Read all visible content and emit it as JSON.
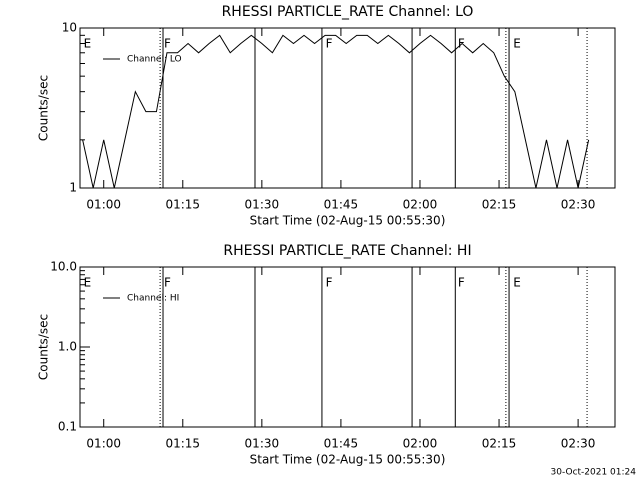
{
  "charts": [
    {
      "type": "line",
      "title": "RHESSI PARTICLE_RATE Channel: LO",
      "xlabel": "Start Time (02-Aug-15 00:55:30)",
      "ylabel": "Counts/sec",
      "log_y": true,
      "ylim": [
        1,
        10
      ],
      "yticks": [
        1,
        10
      ],
      "xlim": [
        55.5,
        157
      ],
      "xticks": [
        {
          "value": 60,
          "label": "01:00"
        },
        {
          "value": 75,
          "label": "01:15"
        },
        {
          "value": 90,
          "label": "01:30"
        },
        {
          "value": 105,
          "label": "01:45"
        },
        {
          "value": 120,
          "label": "02:00"
        },
        {
          "value": 135,
          "label": "02:15"
        },
        {
          "value": 150,
          "label": "02:30"
        }
      ],
      "x": [
        56,
        58,
        60,
        62,
        64,
        66,
        68,
        70,
        72,
        74,
        76,
        78,
        80,
        82,
        84,
        86,
        88,
        90,
        92,
        94,
        96,
        98,
        100,
        102,
        104,
        106,
        108,
        110,
        112,
        114,
        116,
        118,
        120,
        122,
        124,
        126,
        128,
        130,
        132,
        134,
        136,
        138,
        140,
        142,
        144,
        146,
        148,
        150,
        152
      ],
      "series": [
        {
          "name": "Channel: LO",
          "color": "#000000",
          "values": [
            2,
            1,
            2,
            1,
            2,
            4,
            3,
            3,
            7,
            7,
            8,
            7,
            8,
            9,
            7,
            8,
            9,
            8,
            7,
            9,
            8,
            9,
            8,
            9,
            9,
            8,
            9,
            9,
            8,
            9,
            8,
            7,
            8,
            9,
            8,
            7,
            8,
            7,
            8,
            7,
            5,
            4,
            2,
            1,
            2,
            1,
            2,
            1,
            2
          ]
        }
      ],
      "vlines": [
        {
          "x": 70.7,
          "style": "dotted"
        },
        {
          "x": 71.25,
          "style": "solid"
        },
        {
          "x": 88.7,
          "style": "solid"
        },
        {
          "x": 101.4,
          "style": "solid"
        },
        {
          "x": 118.5,
          "style": "solid"
        },
        {
          "x": 126.7,
          "style": "solid"
        },
        {
          "x": 136.3,
          "style": "dotted"
        },
        {
          "x": 136.9,
          "style": "solid"
        },
        {
          "x": 151.7,
          "style": "dotted"
        }
      ],
      "flags": [
        {
          "x": 56,
          "label": "E"
        },
        {
          "x": 71.25,
          "label": "F"
        },
        {
          "x": 101.9,
          "label": "F"
        },
        {
          "x": 127,
          "label": "F"
        },
        {
          "x": 137.5,
          "label": "E"
        }
      ]
    },
    {
      "type": "line",
      "title": "RHESSI PARTICLE_RATE Channel: HI",
      "xlabel": "Start Time (02-Aug-15 00:55:30)",
      "ylabel": "Counts/sec",
      "log_y": true,
      "ylim": [
        0.1,
        10
      ],
      "yticks": [
        {
          "value": 0.1,
          "label": "0.1"
        },
        {
          "value": 1,
          "label": "1.0"
        },
        {
          "value": 10,
          "label": "10.0"
        }
      ],
      "xlim": [
        55.5,
        157
      ],
      "xticks": [
        {
          "value": 60,
          "label": "01:00"
        },
        {
          "value": 75,
          "label": "01:15"
        },
        {
          "value": 90,
          "label": "01:30"
        },
        {
          "value": 105,
          "label": "01:45"
        },
        {
          "value": 120,
          "label": "02:00"
        },
        {
          "value": 135,
          "label": "02:15"
        },
        {
          "value": 150,
          "label": "02:30"
        }
      ],
      "x": [],
      "series": [
        {
          "name": "Channel: HI",
          "color": "#000000",
          "values": []
        }
      ],
      "vlines": [
        {
          "x": 70.7,
          "style": "dotted"
        },
        {
          "x": 71.25,
          "style": "solid"
        },
        {
          "x": 88.7,
          "style": "solid"
        },
        {
          "x": 101.4,
          "style": "solid"
        },
        {
          "x": 118.5,
          "style": "solid"
        },
        {
          "x": 126.7,
          "style": "solid"
        },
        {
          "x": 136.3,
          "style": "dotted"
        },
        {
          "x": 136.9,
          "style": "solid"
        },
        {
          "x": 151.7,
          "style": "dotted"
        }
      ],
      "flags": [
        {
          "x": 56,
          "label": "E"
        },
        {
          "x": 71.25,
          "label": "F"
        },
        {
          "x": 101.9,
          "label": "F"
        },
        {
          "x": 127,
          "label": "F"
        },
        {
          "x": 137.5,
          "label": "E"
        }
      ]
    }
  ],
  "footer": "30-Oct-2021 01:24"
}
